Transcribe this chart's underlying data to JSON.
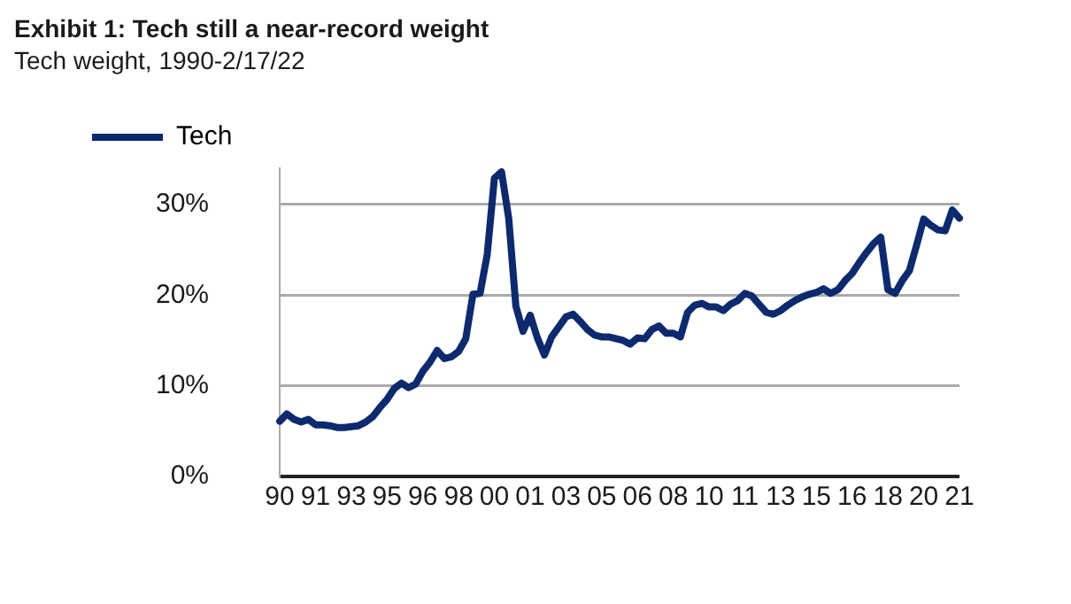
{
  "chart_data": {
    "type": "line",
    "title": "Exhibit 1: Tech still a near-record weight",
    "subtitle": "Tech weight, 1990-2/17/22",
    "categories": [
      "90",
      null,
      null,
      null,
      null,
      "91",
      null,
      null,
      null,
      null,
      "93",
      null,
      null,
      null,
      null,
      "95",
      null,
      null,
      null,
      null,
      "96",
      null,
      null,
      null,
      null,
      "98",
      null,
      null,
      null,
      null,
      "00",
      null,
      null,
      null,
      null,
      "01",
      null,
      null,
      null,
      null,
      "03",
      null,
      null,
      null,
      null,
      "05",
      null,
      null,
      null,
      null,
      "06",
      null,
      null,
      null,
      null,
      "08",
      null,
      null,
      null,
      null,
      "10",
      null,
      null,
      null,
      null,
      "11",
      null,
      null,
      null,
      null,
      "13",
      null,
      null,
      null,
      null,
      "15",
      null,
      null,
      null,
      null,
      "16",
      null,
      null,
      null,
      null,
      "18",
      null,
      null,
      null,
      null,
      "20",
      null,
      null,
      null,
      null,
      "21"
    ],
    "series": [
      {
        "name": "Tech",
        "color": "#0d2a6e",
        "values": [
          6.1,
          6.9,
          6.3,
          6.0,
          6.3,
          5.7,
          5.7,
          5.6,
          5.4,
          5.4,
          5.5,
          5.6,
          6.0,
          6.6,
          7.6,
          8.5,
          9.7,
          10.3,
          9.8,
          10.2,
          11.6,
          12.6,
          13.9,
          13.0,
          13.2,
          13.8,
          15.2,
          20.1,
          20.2,
          24.5,
          32.9,
          33.6,
          28.5,
          18.8,
          16.0,
          17.8,
          15.3,
          13.4,
          15.4,
          16.5,
          17.6,
          17.9,
          17.1,
          16.2,
          15.6,
          15.4,
          15.4,
          15.2,
          15.0,
          14.6,
          15.3,
          15.2,
          16.2,
          16.6,
          15.8,
          15.8,
          15.4,
          18.1,
          18.9,
          19.1,
          18.7,
          18.7,
          18.3,
          19.0,
          19.4,
          20.2,
          19.9,
          19.0,
          18.1,
          17.9,
          18.3,
          18.9,
          19.4,
          19.8,
          20.1,
          20.3,
          20.7,
          20.2,
          20.6,
          21.6,
          22.4,
          23.6,
          24.7,
          25.7,
          26.4,
          20.6,
          20.2,
          21.6,
          22.7,
          25.5,
          28.4,
          27.7,
          27.2,
          27.1,
          29.4,
          28.5
        ]
      }
    ],
    "ylim": [
      0,
      34
    ],
    "yticks": [
      {
        "value": 0,
        "label": "0%"
      },
      {
        "value": 10,
        "label": "10%"
      },
      {
        "value": 20,
        "label": "20%"
      },
      {
        "value": 30,
        "label": "30%"
      }
    ],
    "grid": "y",
    "legend": "top left",
    "marker": "none",
    "line_style": "solid"
  }
}
